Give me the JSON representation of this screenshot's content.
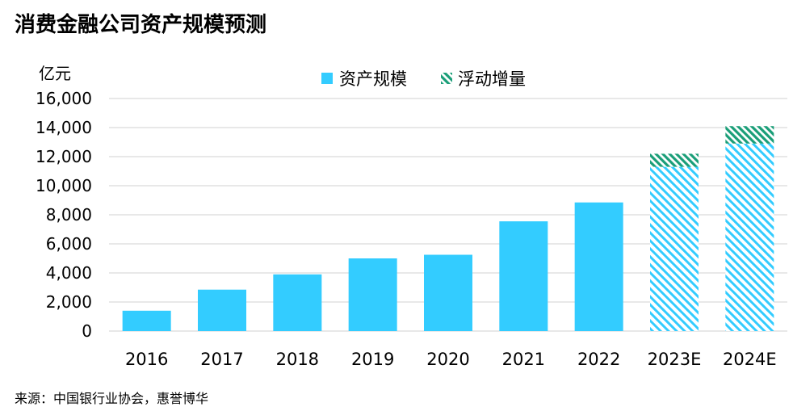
{
  "title": "消费金融公司资产规模预测",
  "source": "来源：中国银行业协会，惠誉博华",
  "colors": {
    "solid": "#33ccff",
    "hatch_light": "#33ccff",
    "hatch_dark": "#1a9e78",
    "grid": "#d9d9d9"
  },
  "chart_data": {
    "type": "bar",
    "title": "消费金融公司资产规模预测",
    "ylabel": "亿元",
    "xlabel": "",
    "ylim": [
      0,
      16000
    ],
    "yticks": [
      0,
      2000,
      4000,
      6000,
      8000,
      10000,
      12000,
      14000,
      16000
    ],
    "ytick_labels": [
      "0",
      "2,000",
      "4,000",
      "6,000",
      "8,000",
      "10,000",
      "12,000",
      "14,000",
      "16,000"
    ],
    "categories": [
      "2016",
      "2017",
      "2018",
      "2019",
      "2020",
      "2021",
      "2022",
      "2023E",
      "2024E"
    ],
    "series": [
      {
        "name": "资产规模",
        "values": [
          1400,
          2850,
          3900,
          5000,
          5250,
          7550,
          8850,
          11300,
          12900
        ],
        "style": "solid-for-actual-hatched-for-forecast"
      },
      {
        "name": "浮动增量",
        "values": [
          0,
          0,
          0,
          0,
          0,
          0,
          0,
          900,
          1200
        ],
        "style": "dense-hatch"
      }
    ],
    "forecast_categories": [
      "2023E",
      "2024E"
    ],
    "legend_position": "top-center",
    "grid": true
  }
}
